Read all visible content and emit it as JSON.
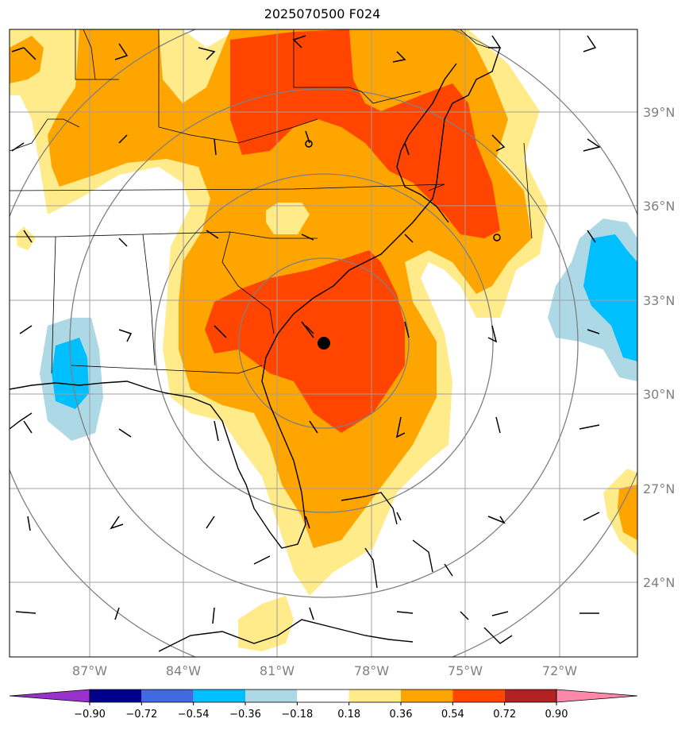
{
  "title": "2025070500 F024",
  "lat_labels": [
    "39°N",
    "36°N",
    "33°N",
    "30°N",
    "27°N",
    "24°N"
  ],
  "lon_labels": [
    "87°W",
    "84°W",
    "81°W",
    "78°W",
    "75°W",
    "72°W"
  ],
  "colorbar": {
    "tick_labels": [
      "−0.90",
      "−0.72",
      "−0.54",
      "−0.36",
      "−0.18",
      "0.18",
      "0.36",
      "0.54",
      "0.72",
      "0.90"
    ],
    "colors": [
      "#9932cc",
      "#00008b",
      "#4169e1",
      "#00bfff",
      "#add8e6",
      "#ffffff",
      "#ffeb8a",
      "#ffa500",
      "#ff4500",
      "#b22222",
      "#ff88aa"
    ]
  },
  "fill_colors": {
    "light_yellow": "#ffeb8a",
    "orange": "#ffa500",
    "red_orange": "#ff4500",
    "light_blue": "#add8e6",
    "blue": "#00bfff"
  },
  "marker": {
    "lat": 31.7,
    "lon": -79.4
  }
}
